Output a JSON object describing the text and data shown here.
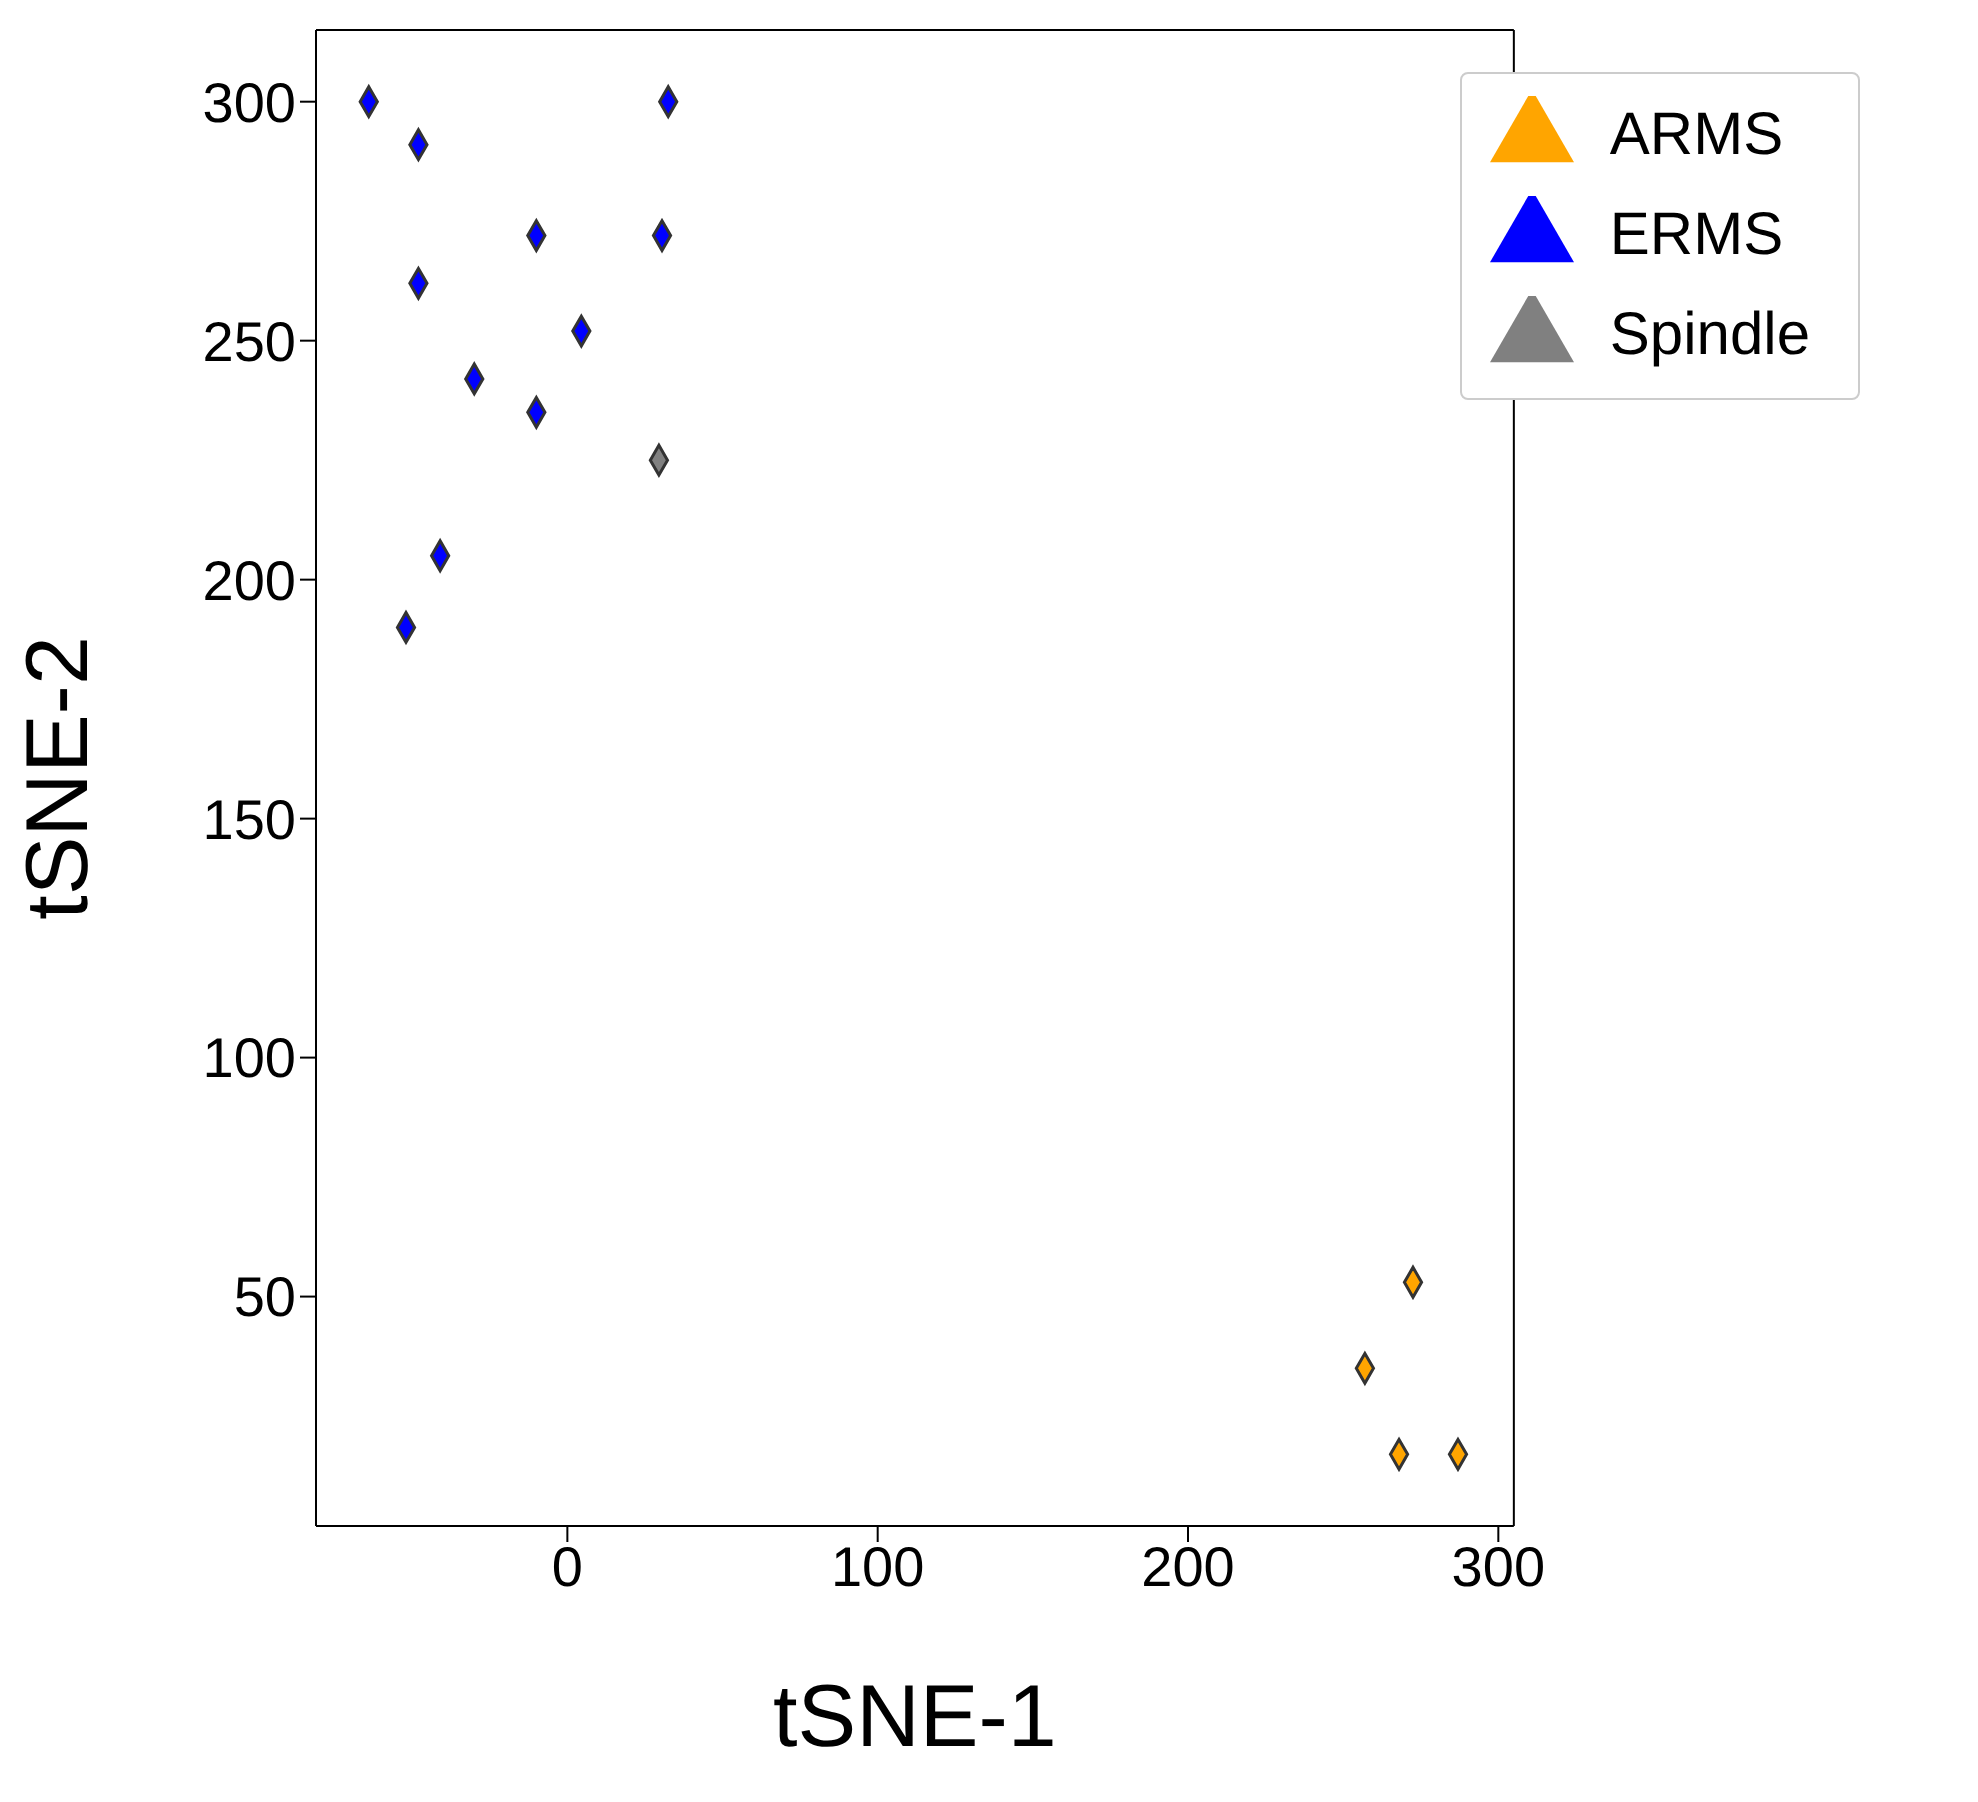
{
  "chart_data": {
    "type": "scatter",
    "xlabel": "tSNE-1",
    "ylabel": "tSNE-2",
    "xlim": [
      -81,
      305
    ],
    "ylim": [
      2,
      315
    ],
    "xticks": [
      0,
      100,
      200,
      300
    ],
    "yticks": [
      50,
      100,
      150,
      200,
      250,
      300
    ],
    "grid": false,
    "legend": "top right",
    "marker": "diamond",
    "series": [
      {
        "name": "ARMS",
        "color": "#ffa500",
        "x": [
          257,
          272.5,
          268,
          287
        ],
        "values": [
          35,
          53,
          17,
          17
        ]
      },
      {
        "name": "ERMS",
        "color": "#0000ff",
        "x": [
          -64,
          -48,
          -48,
          32.5,
          30.5,
          -10,
          4.5,
          -30,
          -10,
          -41,
          -52
        ],
        "values": [
          300,
          291,
          262,
          300,
          272,
          272,
          252,
          242,
          235,
          205,
          190
        ]
      },
      {
        "name": "Spindle",
        "color": "#808080",
        "x": [
          29.5
        ],
        "values": [
          225
        ]
      }
    ]
  }
}
